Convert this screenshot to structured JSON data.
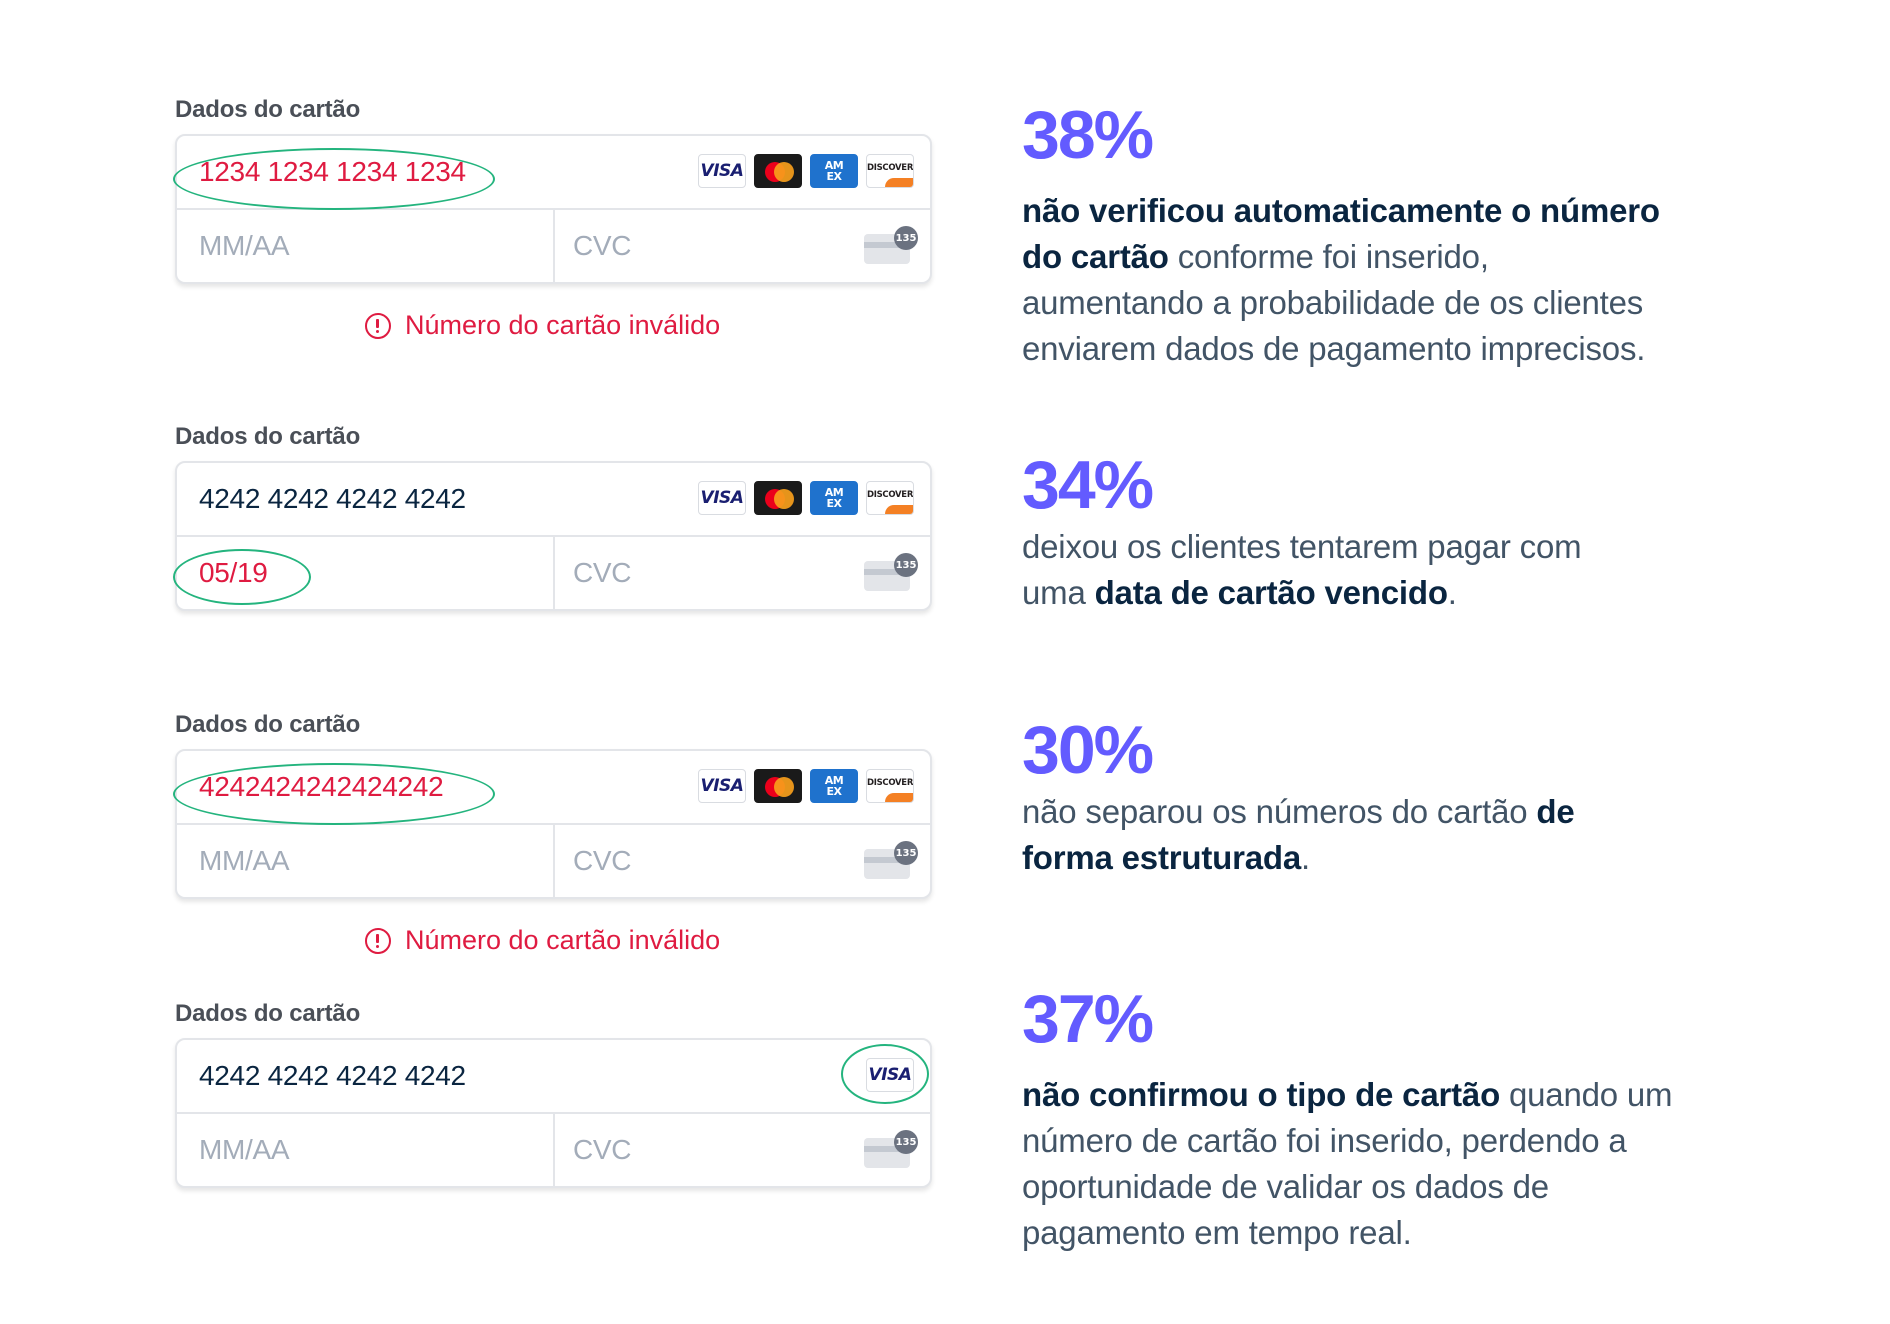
{
  "forms": [
    {
      "label": "Dados do cartão",
      "number": "1234 1234 1234 1234",
      "expiry": "MM/AA",
      "cvc": "CVC",
      "error": "Número do cartão inválido"
    },
    {
      "label": "Dados do cartão",
      "number": "4242 4242 4242 4242",
      "expiry": "05/19",
      "cvc": "CVC"
    },
    {
      "label": "Dados do cartão",
      "number": "4242424242424242",
      "expiry": "MM/AA",
      "cvc": "CVC",
      "error": "Número do cartão inválido"
    },
    {
      "label": "Dados do cartão",
      "number": "4242 4242 4242 4242",
      "expiry": "MM/AA",
      "cvc": "CVC"
    }
  ],
  "brands": {
    "visa": "VISA",
    "amex_line1": "AM",
    "amex_line2": "EX",
    "discover": "DISCOVER",
    "cvc_badge": "135"
  },
  "icons": {
    "visa": "visa-icon",
    "mastercard": "mastercard-icon",
    "amex": "amex-icon",
    "discover": "discover-icon",
    "cvc": "cvc-card-icon",
    "error": "error-icon"
  },
  "colors": {
    "accent": "#635bff",
    "error": "#df1b41",
    "highlight": "#24b47e",
    "heading": "#0a2540",
    "body": "#425466"
  },
  "stats": [
    {
      "percent": "38%",
      "lines": [
        [
          {
            "b": "não verificou automaticamente o número"
          }
        ],
        [
          {
            "b": "do cartão"
          },
          {
            "t": " conforme foi inserido,"
          }
        ],
        [
          {
            "t": "aumentando a probabilidade de os clientes"
          }
        ],
        [
          {
            "t": "enviarem dados de pagamento imprecisos."
          }
        ]
      ]
    },
    {
      "percent": "34%",
      "lines": [
        [
          {
            "t": "deixou os clientes tentarem pagar com"
          }
        ],
        [
          {
            "t": "uma "
          },
          {
            "b": "data de cartão vencido"
          },
          {
            "t": "."
          }
        ]
      ]
    },
    {
      "percent": "30%",
      "lines": [
        [
          {
            "t": "não separou os números do cartão "
          },
          {
            "b": "de"
          }
        ],
        [
          {
            "b": "forma estruturada"
          },
          {
            "t": "."
          }
        ]
      ]
    },
    {
      "percent": "37%",
      "lines": [
        [
          {
            "b": "não confirmou o tipo de cartão"
          },
          {
            "t": " quando um"
          }
        ],
        [
          {
            "t": "número de cartão foi inserido, perdendo a"
          }
        ],
        [
          {
            "t": "oportunidade de validar os dados de"
          }
        ],
        [
          {
            "t": "pagamento em tempo real."
          }
        ]
      ]
    }
  ]
}
